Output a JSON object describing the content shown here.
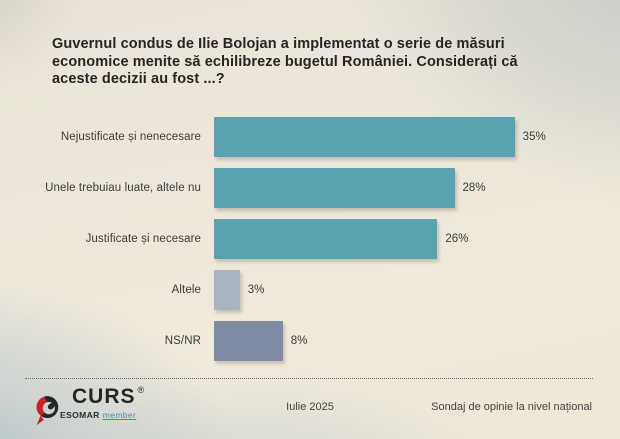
{
  "title": "Guvernul condus de Ilie Bolojan a implementat o serie de măsuri economice menite să echilibreze bugetul României. Considerați că aceste decizii au fost ...?",
  "chart_data": {
    "type": "bar",
    "orientation": "horizontal",
    "title": "",
    "categories": [
      "Nejustificate și nenecesare",
      "Unele trebuiau luate, altele nu",
      "Justificate și necesare",
      "Altele",
      "NS/NR"
    ],
    "values": [
      35,
      28,
      26,
      3,
      8
    ],
    "value_labels": [
      "35%",
      "28%",
      "26%",
      "3%",
      "8%"
    ],
    "bar_colors": [
      "#58a2b2",
      "#58a2b2",
      "#58a2b2",
      "#a9b3c1",
      "#7d8ca3"
    ],
    "xlim": [
      0,
      44
    ],
    "grid": false,
    "legend": false
  },
  "footer": {
    "logo_wordmark": "CURS",
    "logo_registered": "®",
    "logo_sub_bold": "ESOMAR",
    "logo_sub_light": "member",
    "date": "Iulie 2025",
    "note": "Sondaj de opinie la nivel național"
  },
  "colors": {
    "teal_bar": "#58a2b2",
    "light_gray_bar": "#a9b3c1",
    "dark_gray_bar": "#7d8ca3",
    "logo_red": "#cf2027",
    "logo_dark": "#26262a",
    "member_blue": "#4f86bd",
    "background_cream": "#eee8da",
    "background_blue": "#bfcdd6",
    "text_dark": "#262521"
  }
}
